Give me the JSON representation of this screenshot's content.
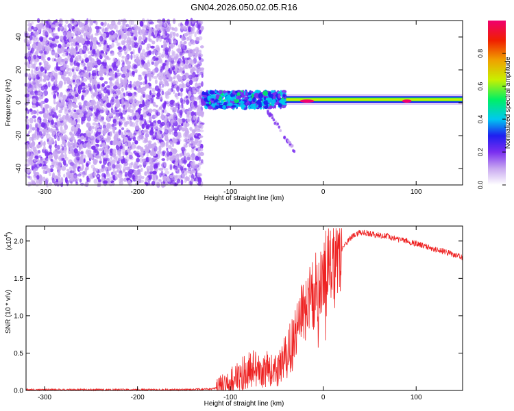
{
  "title": "GN04.2026.050.02.05.R16",
  "chart_data": [
    {
      "type": "heatmap",
      "name": "spectrogram",
      "xlabel": "Height of straight line (km)",
      "ylabel": "Frequency (Hz)",
      "xlim": [
        -320,
        150
      ],
      "ylim": [
        -50,
        50
      ],
      "x_ticks": [
        "-300",
        "-200",
        "-100",
        "0",
        "100"
      ],
      "x_tick_values": [
        -300,
        -200,
        -100,
        0,
        100
      ],
      "y_ticks": [
        "-40",
        "-20",
        "0",
        "20",
        "40"
      ],
      "y_tick_values": [
        -40,
        -20,
        0,
        20,
        40
      ],
      "regions": [
        {
          "label": "noise",
          "x_range": [
            -320,
            -130
          ],
          "y_range": [
            -50,
            50
          ],
          "amplitude": 0.1
        },
        {
          "label": "scattered signal",
          "x_range": [
            -130,
            -40
          ],
          "y_range": [
            -3,
            7
          ],
          "amplitude": 0.35
        },
        {
          "label": "tail",
          "x_range": [
            -60,
            -30
          ],
          "y_range": [
            -30,
            -5
          ],
          "amplitude": 0.15
        },
        {
          "label": "carrier line",
          "x_range": [
            -40,
            150
          ],
          "y_range": [
            0,
            4
          ],
          "amplitude": 0.55
        },
        {
          "label": "carrier peak",
          "x_range": [
            -25,
            -10
          ],
          "y_range": [
            0,
            2
          ],
          "amplitude": 0.95
        },
        {
          "label": "carrier peak",
          "x_range": [
            85,
            95
          ],
          "y_range": [
            0,
            2
          ],
          "amplitude": 0.95
        }
      ],
      "colorbar": {
        "label": "Normalized spectral amplitude",
        "range": [
          0,
          1
        ],
        "ticks": [
          "0.0",
          "0.2",
          "0.4",
          "0.6",
          "0.8"
        ],
        "tick_values": [
          0,
          0.2,
          0.4,
          0.6,
          0.8
        ],
        "colors": [
          "#ffffff",
          "#c8a8f0",
          "#7a2ef0",
          "#1e1ef0",
          "#00c8f0",
          "#00f064",
          "#c8f000",
          "#f0a000",
          "#f01e00",
          "#f0006e"
        ]
      }
    },
    {
      "type": "line",
      "name": "snr",
      "xlabel": "Height of straight line (km)",
      "ylabel": "SNR (10 * v/v)",
      "y_multiplier": "(x10",
      "y_multiplier_exp": "4",
      "y_multiplier_close": ")",
      "xlim": [
        -320,
        150
      ],
      "ylim": [
        0,
        2.2
      ],
      "x_ticks": [
        "-300",
        "-200",
        "-100",
        "0",
        "100"
      ],
      "x_tick_values": [
        -300,
        -200,
        -100,
        0,
        100
      ],
      "y_ticks": [
        "0.0",
        "0.5",
        "1.0",
        "1.5",
        "2.0"
      ],
      "y_tick_values": [
        0,
        0.5,
        1.0,
        1.5,
        2.0
      ],
      "color": "#ee2222",
      "series": [
        {
          "name": "SNR",
          "x": [
            -320,
            -250,
            -200,
            -150,
            -120,
            -110,
            -100,
            -90,
            -80,
            -70,
            -60,
            -50,
            -40,
            -30,
            -20,
            -10,
            0,
            10,
            20,
            30,
            40,
            50,
            60,
            70,
            80,
            90,
            100,
            110,
            120,
            130,
            140,
            150
          ],
          "y": [
            0.01,
            0.01,
            0.01,
            0.01,
            0.02,
            0.05,
            0.12,
            0.2,
            0.28,
            0.3,
            0.28,
            0.3,
            0.45,
            0.75,
            1.05,
            1.3,
            1.55,
            1.75,
            1.9,
            2.05,
            2.12,
            2.1,
            2.08,
            2.06,
            2.02,
            2.0,
            1.96,
            1.93,
            1.89,
            1.86,
            1.82,
            1.78
          ]
        }
      ]
    }
  ]
}
